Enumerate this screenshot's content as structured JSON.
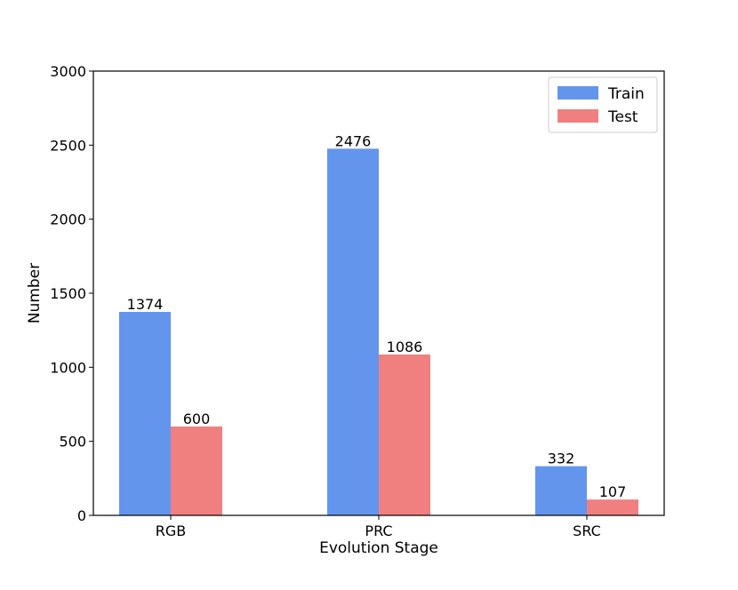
{
  "chart_data": {
    "type": "bar",
    "title": "",
    "xlabel": "Evolution Stage",
    "ylabel": "Number",
    "categories": [
      "RGB",
      "PRC",
      "SRC"
    ],
    "series": [
      {
        "name": "Train",
        "values": [
          1374,
          2476,
          332
        ],
        "color": "#6495ED"
      },
      {
        "name": "Test",
        "values": [
          600,
          1086,
          107
        ],
        "color": "#F08080"
      }
    ],
    "ylim": [
      0,
      3000
    ],
    "yticks": [
      0,
      500,
      1000,
      1500,
      2000,
      2500,
      3000
    ],
    "grid": false,
    "legend_position": "top-right"
  }
}
